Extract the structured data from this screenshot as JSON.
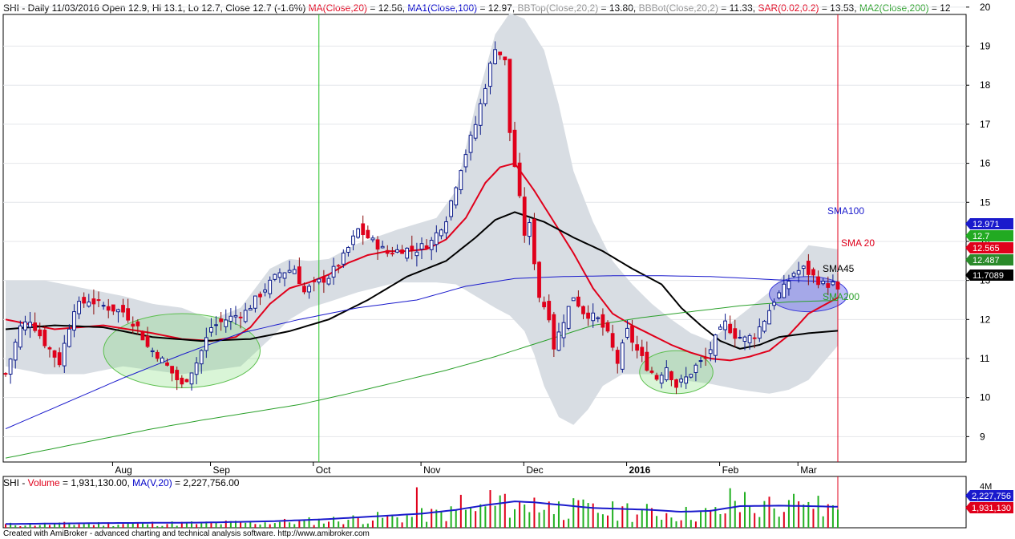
{
  "header": {
    "parts": [
      {
        "text": "SHI - Daily 11/03/2016 Open 12.9, Hi 13.1, Lo 12.7, Close 12.7 (-1.6%) ",
        "color": "#000000"
      },
      {
        "text": "MA(Close,20)",
        "color": "#e0001b"
      },
      {
        "text": " = 12.56, ",
        "color": "#000000"
      },
      {
        "text": "MA1(Close,100)",
        "color": "#0000c8"
      },
      {
        "text": " = 12.97, ",
        "color": "#000000"
      },
      {
        "text": "BBTop(Close,20,2)",
        "color": "#8c8c8c"
      },
      {
        "text": " = 13.80, ",
        "color": "#000000"
      },
      {
        "text": "BBBot(Close,20,2)",
        "color": "#8c8c8c"
      },
      {
        "text": " = 11.33, ",
        "color": "#000000"
      },
      {
        "text": "SAR(0.02,0.2)",
        "color": "#e0001b"
      },
      {
        "text": " = 13.53, ",
        "color": "#000000"
      },
      {
        "text": "MA2(Close,200)",
        "color": "#2aa02a"
      },
      {
        "text": " = 12",
        "color": "#000000"
      }
    ]
  },
  "volume_header": {
    "parts": [
      {
        "text": "SHI - ",
        "color": "#000000"
      },
      {
        "text": "Volume",
        "color": "#e0001b"
      },
      {
        "text": " = 1,931,130.00, ",
        "color": "#000000"
      },
      {
        "text": "MA(V,20)",
        "color": "#0000c8"
      },
      {
        "text": " = 2,227,756.00",
        "color": "#000000"
      }
    ]
  },
  "footer": "Created with AmiBroker - advanced charting and technical analysis software. http://www.amibroker.com",
  "annotations": [
    {
      "text": "SMA100",
      "color": "#1a1acc"
    },
    {
      "text": "SMA 20",
      "color": "#e0001b"
    },
    {
      "text": "SMA45",
      "color": "#000000"
    },
    {
      "text": "SMA200",
      "color": "#2aa02a"
    }
  ],
  "price_badges": [
    {
      "value": "12.971",
      "bg": "#1a1acc"
    },
    {
      "value": "12.7",
      "bg": "#22aa22"
    },
    {
      "value": "12.565",
      "bg": "#e0001b"
    },
    {
      "value": "12.487",
      "bg": "#2a8a2a"
    },
    {
      "value": "11.7089",
      "bg": "#000000"
    }
  ],
  "volume_badges": [
    {
      "value": "2,227,756",
      "bg": "#1a1acc"
    },
    {
      "value": "1,931,130",
      "bg": "#e0001b"
    }
  ],
  "volume_axis_label": "4M",
  "chart_data": {
    "type": "candlestick",
    "ylim": [
      8.35,
      20.1
    ],
    "y_ticks": [
      9,
      10,
      11,
      12,
      13,
      14,
      15,
      16,
      17,
      18,
      19,
      20
    ],
    "x_month_labels": [
      {
        "label": "Aug",
        "bar": 23
      },
      {
        "label": "Sep",
        "bar": 43
      },
      {
        "label": "Oct",
        "bar": 64
      },
      {
        "label": "Nov",
        "bar": 86
      },
      {
        "label": "Dec",
        "bar": 107
      },
      {
        "label": "2016",
        "bar": 128,
        "bold": true
      },
      {
        "label": "Feb",
        "bar": 147
      },
      {
        "label": "Mar",
        "bar": 163
      }
    ],
    "bars": 171,
    "close_anchors": [
      [
        0,
        10.6
      ],
      [
        3,
        11.8
      ],
      [
        5,
        12.0
      ],
      [
        8,
        11.4
      ],
      [
        11,
        10.9
      ],
      [
        14,
        12.3
      ],
      [
        17,
        12.5
      ],
      [
        21,
        12.3
      ],
      [
        24,
        12.2
      ],
      [
        27,
        11.8
      ],
      [
        29,
        11.3
      ],
      [
        31,
        11.1
      ],
      [
        33,
        10.8
      ],
      [
        36,
        10.3
      ],
      [
        39,
        10.9
      ],
      [
        42,
        11.8
      ],
      [
        45,
        12.0
      ],
      [
        49,
        12.2
      ],
      [
        53,
        12.8
      ],
      [
        56,
        13.2
      ],
      [
        59,
        13.3
      ],
      [
        61,
        12.7
      ],
      [
        63,
        12.9
      ],
      [
        66,
        13.1
      ],
      [
        69,
        13.6
      ],
      [
        72,
        14.3
      ],
      [
        75,
        14.0
      ],
      [
        78,
        13.7
      ],
      [
        81,
        13.8
      ],
      [
        84,
        13.8
      ],
      [
        87,
        14.0
      ],
      [
        90,
        14.6
      ],
      [
        93,
        15.9
      ],
      [
        96,
        17.0
      ],
      [
        98,
        18.0
      ],
      [
        100,
        19.0
      ],
      [
        102,
        18.6
      ],
      [
        103,
        16.8
      ],
      [
        106,
        14.2
      ],
      [
        107,
        14.4
      ],
      [
        109,
        12.6
      ],
      [
        111,
        12.1
      ],
      [
        112,
        11.3
      ],
      [
        114,
        12.0
      ],
      [
        116,
        12.6
      ],
      [
        118,
        12.2
      ],
      [
        121,
        12.0
      ],
      [
        123,
        11.6
      ],
      [
        125,
        10.9
      ],
      [
        127,
        11.7
      ],
      [
        129,
        11.2
      ],
      [
        131,
        10.8
      ],
      [
        133,
        10.5
      ],
      [
        135,
        10.8
      ],
      [
        137,
        10.3
      ],
      [
        139,
        10.5
      ],
      [
        141,
        10.8
      ],
      [
        143,
        11.0
      ],
      [
        145,
        11.5
      ],
      [
        147,
        11.9
      ],
      [
        149,
        11.6
      ],
      [
        151,
        11.5
      ],
      [
        153,
        11.6
      ],
      [
        155,
        12.0
      ],
      [
        157,
        12.5
      ],
      [
        159,
        12.8
      ],
      [
        161,
        13.2
      ],
      [
        163,
        13.3
      ],
      [
        165,
        13.1
      ],
      [
        167,
        12.9
      ],
      [
        169,
        12.9
      ],
      [
        170,
        12.7
      ]
    ],
    "series": [
      {
        "name": "MA(Close,20)",
        "color": "#e0001b",
        "anchors": [
          [
            0,
            12.0
          ],
          [
            10,
            11.75
          ],
          [
            20,
            11.85
          ],
          [
            30,
            11.65
          ],
          [
            36,
            11.5
          ],
          [
            42,
            11.45
          ],
          [
            47,
            11.55
          ],
          [
            50,
            11.8
          ],
          [
            54,
            12.4
          ],
          [
            58,
            12.8
          ],
          [
            62,
            12.95
          ],
          [
            66,
            13.15
          ],
          [
            70,
            13.45
          ],
          [
            74,
            13.65
          ],
          [
            78,
            13.75
          ],
          [
            82,
            13.75
          ],
          [
            86,
            13.8
          ],
          [
            90,
            14.05
          ],
          [
            94,
            14.6
          ],
          [
            98,
            15.5
          ],
          [
            101,
            15.9
          ],
          [
            104,
            16.0
          ],
          [
            108,
            15.3
          ],
          [
            112,
            14.5
          ],
          [
            116,
            13.7
          ],
          [
            120,
            12.8
          ],
          [
            124,
            12.15
          ],
          [
            128,
            11.85
          ],
          [
            132,
            11.6
          ],
          [
            136,
            11.35
          ],
          [
            140,
            11.15
          ],
          [
            144,
            11.0
          ],
          [
            148,
            10.95
          ],
          [
            152,
            11.05
          ],
          [
            156,
            11.2
          ],
          [
            160,
            11.6
          ],
          [
            164,
            12.15
          ],
          [
            170,
            12.56
          ]
        ]
      },
      {
        "name": "MA45",
        "color": "#000000",
        "anchors": [
          [
            0,
            11.75
          ],
          [
            10,
            11.85
          ],
          [
            20,
            11.8
          ],
          [
            30,
            11.55
          ],
          [
            40,
            11.45
          ],
          [
            50,
            11.5
          ],
          [
            58,
            11.7
          ],
          [
            66,
            12.0
          ],
          [
            74,
            12.5
          ],
          [
            82,
            13.1
          ],
          [
            90,
            13.5
          ],
          [
            96,
            14.1
          ],
          [
            100,
            14.55
          ],
          [
            104,
            14.75
          ],
          [
            110,
            14.5
          ],
          [
            116,
            14.1
          ],
          [
            122,
            13.75
          ],
          [
            128,
            13.3
          ],
          [
            134,
            12.9
          ],
          [
            138,
            12.3
          ],
          [
            142,
            11.85
          ],
          [
            146,
            11.45
          ],
          [
            150,
            11.25
          ],
          [
            154,
            11.35
          ],
          [
            158,
            11.55
          ],
          [
            164,
            11.65
          ],
          [
            170,
            11.71
          ]
        ]
      },
      {
        "name": "MA1(Close,100)",
        "color": "#1a1acc",
        "anchors": [
          [
            0,
            9.2
          ],
          [
            12,
            9.85
          ],
          [
            24,
            10.5
          ],
          [
            36,
            11.1
          ],
          [
            48,
            11.65
          ],
          [
            60,
            12.0
          ],
          [
            72,
            12.3
          ],
          [
            84,
            12.5
          ],
          [
            94,
            12.85
          ],
          [
            104,
            13.05
          ],
          [
            114,
            13.1
          ],
          [
            124,
            13.12
          ],
          [
            134,
            13.12
          ],
          [
            144,
            13.1
          ],
          [
            152,
            13.05
          ],
          [
            160,
            13.0
          ],
          [
            170,
            12.97
          ]
        ]
      },
      {
        "name": "MA2(Close,200)",
        "color": "#2aa02a",
        "anchors": [
          [
            0,
            8.45
          ],
          [
            10,
            8.7
          ],
          [
            20,
            8.95
          ],
          [
            30,
            9.2
          ],
          [
            40,
            9.42
          ],
          [
            50,
            9.62
          ],
          [
            60,
            9.82
          ],
          [
            70,
            10.1
          ],
          [
            80,
            10.4
          ],
          [
            90,
            10.7
          ],
          [
            100,
            11.05
          ],
          [
            110,
            11.45
          ],
          [
            120,
            11.85
          ],
          [
            130,
            12.05
          ],
          [
            140,
            12.2
          ],
          [
            150,
            12.35
          ],
          [
            160,
            12.45
          ],
          [
            170,
            12.49
          ]
        ]
      }
    ],
    "bollinger": {
      "name": "BBTop/BBBot(Close,20,2)",
      "color": "#d8dde3",
      "top_anchors": [
        [
          0,
          13.0
        ],
        [
          8,
          13.0
        ],
        [
          16,
          12.8
        ],
        [
          24,
          12.6
        ],
        [
          30,
          12.4
        ],
        [
          36,
          12.3
        ],
        [
          42,
          12.0
        ],
        [
          48,
          12.3
        ],
        [
          54,
          13.3
        ],
        [
          58,
          13.55
        ],
        [
          62,
          13.5
        ],
        [
          66,
          13.55
        ],
        [
          72,
          13.95
        ],
        [
          80,
          14.3
        ],
        [
          88,
          14.6
        ],
        [
          92,
          15.3
        ],
        [
          96,
          17.5
        ],
        [
          100,
          19.3
        ],
        [
          103,
          19.85
        ],
        [
          106,
          19.7
        ],
        [
          110,
          18.9
        ],
        [
          113,
          17.5
        ],
        [
          116,
          15.8
        ],
        [
          120,
          14.5
        ],
        [
          124,
          13.5
        ],
        [
          128,
          12.9
        ],
        [
          132,
          12.4
        ],
        [
          136,
          12.0
        ],
        [
          140,
          11.65
        ],
        [
          144,
          11.45
        ],
        [
          148,
          11.9
        ],
        [
          152,
          12.3
        ],
        [
          156,
          12.7
        ],
        [
          160,
          13.3
        ],
        [
          164,
          13.9
        ],
        [
          170,
          13.8
        ]
      ],
      "bottom_anchors": [
        [
          0,
          10.8
        ],
        [
          8,
          10.6
        ],
        [
          16,
          10.6
        ],
        [
          24,
          10.8
        ],
        [
          30,
          10.7
        ],
        [
          36,
          10.6
        ],
        [
          42,
          10.7
        ],
        [
          48,
          10.8
        ],
        [
          54,
          11.5
        ],
        [
          58,
          12.0
        ],
        [
          62,
          12.3
        ],
        [
          66,
          12.45
        ],
        [
          72,
          12.7
        ],
        [
          80,
          12.95
        ],
        [
          88,
          12.95
        ],
        [
          92,
          12.9
        ],
        [
          96,
          12.6
        ],
        [
          100,
          12.3
        ],
        [
          103,
          12.1
        ],
        [
          106,
          11.7
        ],
        [
          108,
          11.1
        ],
        [
          110,
          10.3
        ],
        [
          113,
          9.5
        ],
        [
          116,
          9.3
        ],
        [
          119,
          9.7
        ],
        [
          122,
          10.3
        ],
        [
          126,
          10.6
        ],
        [
          132,
          10.6
        ],
        [
          138,
          10.45
        ],
        [
          144,
          10.35
        ],
        [
          150,
          10.2
        ],
        [
          156,
          10.1
        ],
        [
          160,
          10.2
        ],
        [
          164,
          10.45
        ],
        [
          170,
          11.33
        ]
      ]
    },
    "volume": {
      "ylim": [
        0,
        4600000
      ],
      "ma_name": "MA(V,20)",
      "ma_color": "#1a1acc",
      "ma_anchors": [
        [
          0,
          400000
        ],
        [
          20,
          500000
        ],
        [
          40,
          550000
        ],
        [
          55,
          700000
        ],
        [
          65,
          900000
        ],
        [
          75,
          1200000
        ],
        [
          85,
          1500000
        ],
        [
          92,
          1900000
        ],
        [
          98,
          2400000
        ],
        [
          104,
          2800000
        ],
        [
          108,
          2700000
        ],
        [
          114,
          2400000
        ],
        [
          120,
          2100000
        ],
        [
          126,
          2000000
        ],
        [
          132,
          1900000
        ],
        [
          138,
          1700000
        ],
        [
          144,
          1800000
        ],
        [
          150,
          2300000
        ],
        [
          158,
          2350000
        ],
        [
          164,
          2300000
        ],
        [
          170,
          2227756
        ]
      ],
      "spikes": [
        [
          84,
          4300000
        ],
        [
          93,
          3500000
        ],
        [
          99,
          4000000
        ],
        [
          102,
          3600000
        ],
        [
          108,
          3200000
        ],
        [
          113,
          2800000
        ],
        [
          118,
          3000000
        ],
        [
          127,
          2600000
        ],
        [
          148,
          4200000
        ],
        [
          151,
          3800000
        ],
        [
          156,
          3300000
        ],
        [
          161,
          3600000
        ],
        [
          166,
          3400000
        ],
        [
          170,
          1931130
        ]
      ]
    },
    "markers": {
      "green_vline_bar": 64,
      "red_vline_bar": 170
    },
    "ellipses": [
      {
        "color": "green",
        "cx_bar": 36,
        "cy": 11.2,
        "rx_bars": 16,
        "ry": 0.95
      },
      {
        "color": "green",
        "cx_bar": 137,
        "cy": 10.65,
        "rx_bars": 7.5,
        "ry": 0.55
      },
      {
        "color": "blue",
        "cx_bar": 164,
        "cy": 12.65,
        "rx_bars": 8,
        "ry": 0.45
      }
    ]
  }
}
